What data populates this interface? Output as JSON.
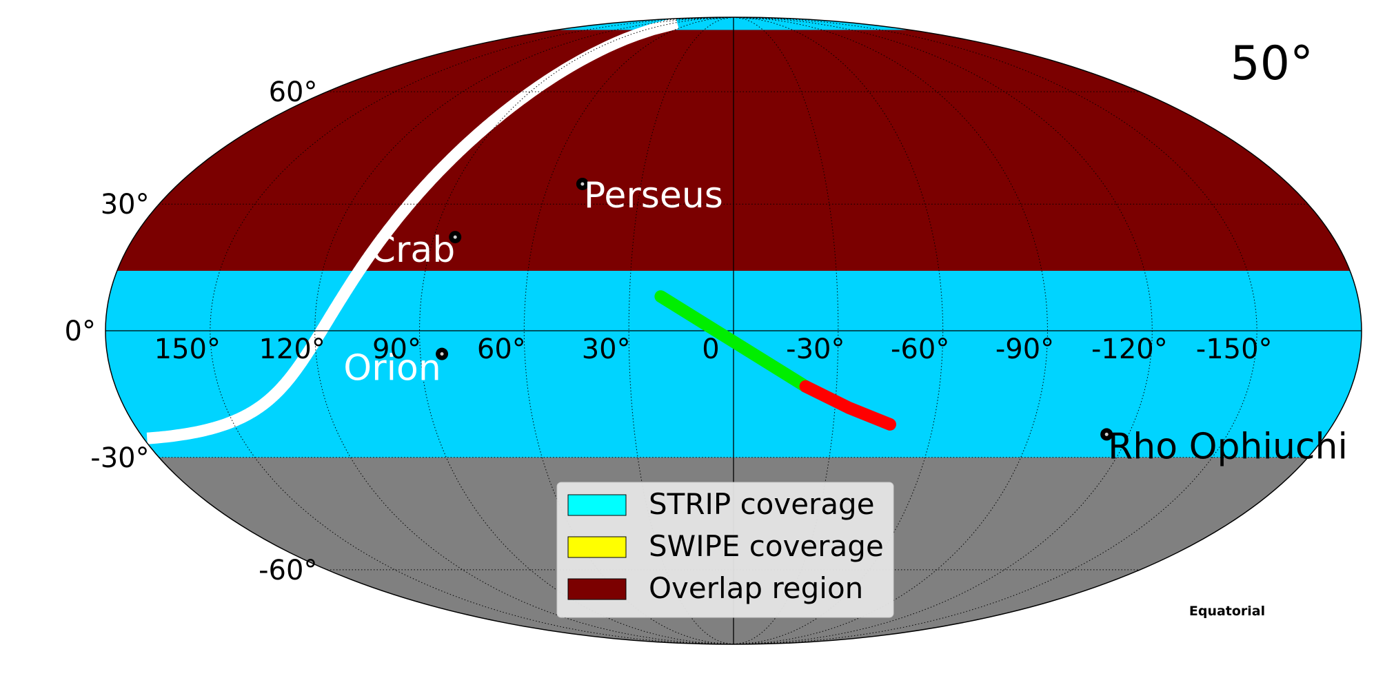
{
  "chart_data": {
    "type": "map",
    "projection": "mollweide",
    "coord_frame_label": "Equatorial",
    "corner_label": "50°",
    "grid": true,
    "lon_ticks": [
      {
        "lon": 150,
        "label": "150°"
      },
      {
        "lon": 120,
        "label": "120°"
      },
      {
        "lon": 90,
        "label": "90°"
      },
      {
        "lon": 60,
        "label": "60°"
      },
      {
        "lon": 30,
        "label": "30°"
      },
      {
        "lon": 0,
        "label": "0"
      },
      {
        "lon": -30,
        "label": "-30°"
      },
      {
        "lon": -60,
        "label": "-60°"
      },
      {
        "lon": -90,
        "label": "-90°"
      },
      {
        "lon": -120,
        "label": "-120°"
      },
      {
        "lon": -150,
        "label": "-150°"
      }
    ],
    "lat_ticks": [
      {
        "lat": 60,
        "label": "60°"
      },
      {
        "lat": 30,
        "label": "30°"
      },
      {
        "lat": 0,
        "label": "0°"
      },
      {
        "lat": -30,
        "label": "-30°"
      },
      {
        "lat": -60,
        "label": "-60°"
      }
    ],
    "regions": [
      {
        "name": "STRIP coverage",
        "color": "#00d4ff",
        "dec_range": [
          -30,
          90
        ]
      },
      {
        "name": "Overlap region",
        "color": "#7b0000",
        "dec_range": [
          14,
          82
        ]
      }
    ],
    "uncovered_color": "#808080",
    "legend": {
      "location": "bottom-center",
      "items": [
        {
          "label": "STRIP coverage",
          "color": "#00ffff"
        },
        {
          "label": "SWIPE coverage",
          "color": "#ffff00"
        },
        {
          "label": "Overlap region",
          "color": "#7b0000"
        }
      ]
    },
    "sources": [
      {
        "name": "Perseus",
        "lon": 49,
        "lat": 35,
        "label_color": "#ffffff"
      },
      {
        "name": "Crab",
        "lon": 83.6,
        "lat": 22,
        "label_color": "#ffffff"
      },
      {
        "name": "Orion",
        "lon": 83.8,
        "lat": -5.4,
        "label_color": "#ffffff"
      },
      {
        "name": "Rho Ophiuchi",
        "lon": -113.3,
        "lat": -24.4,
        "label_color": "#000000"
      }
    ],
    "tracks": [
      {
        "color": "#00ee00",
        "points": [
          [
            21,
            8
          ],
          [
            -21,
            -13
          ]
        ]
      },
      {
        "color": "#ff0000",
        "points": [
          [
            -21,
            -13
          ],
          [
            -34,
            -18
          ],
          [
            -47,
            -22
          ]
        ]
      }
    ]
  }
}
